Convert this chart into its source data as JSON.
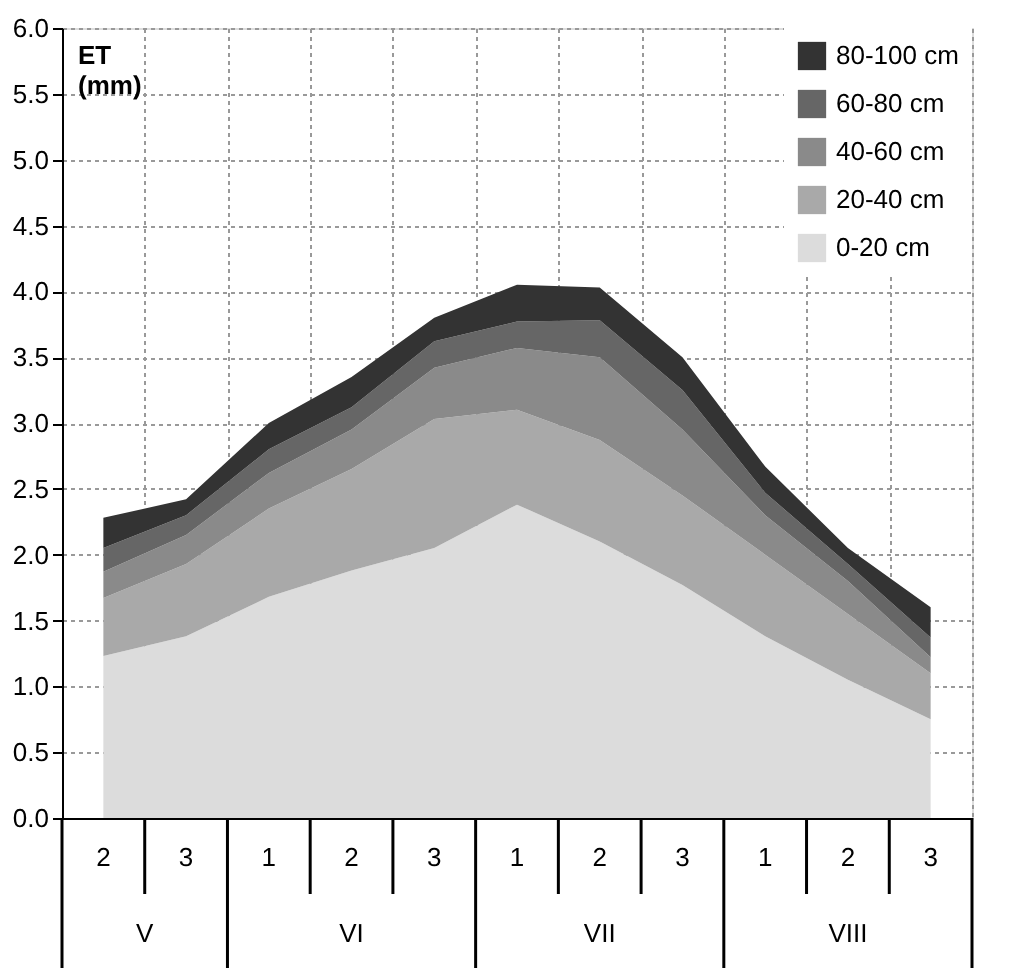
{
  "chart_data": {
    "type": "area",
    "stacked": true,
    "ylabel": "ET (mm)",
    "categories": [
      "2",
      "3",
      "1",
      "2",
      "3",
      "1",
      "2",
      "3",
      "1",
      "2",
      "3"
    ],
    "annotations": [
      "V",
      "VI",
      "VII",
      "VIII"
    ],
    "series": [
      {
        "name": "0-20 cm",
        "color": "#dcdcdc",
        "values": [
          1.23,
          1.38,
          1.68,
          1.88,
          2.05,
          2.38,
          2.1,
          1.77,
          1.38,
          1.05,
          0.75
        ]
      },
      {
        "name": "20-40 cm",
        "color": "#a9a9a9",
        "values": [
          0.44,
          0.55,
          0.67,
          0.77,
          0.98,
          0.72,
          0.77,
          0.68,
          0.62,
          0.5,
          0.35
        ]
      },
      {
        "name": "40-60 cm",
        "color": "#8a8a8a",
        "values": [
          0.2,
          0.22,
          0.27,
          0.3,
          0.39,
          0.47,
          0.63,
          0.5,
          0.3,
          0.25,
          0.12
        ]
      },
      {
        "name": "60-80 cm",
        "color": "#666666",
        "values": [
          0.18,
          0.15,
          0.18,
          0.17,
          0.2,
          0.2,
          0.28,
          0.3,
          0.17,
          0.13,
          0.15
        ]
      },
      {
        "name": "80-100 cm",
        "color": "#333333",
        "values": [
          0.23,
          0.12,
          0.2,
          0.23,
          0.18,
          0.28,
          0.25,
          0.25,
          0.2,
          0.12,
          0.23
        ]
      }
    ],
    "ylim": [
      0,
      6
    ],
    "yticks": [
      {
        "value": 0,
        "label": "0.0"
      },
      {
        "value": 0.5,
        "label": "0.5"
      },
      {
        "value": 1,
        "label": "1.0"
      },
      {
        "value": 1.5,
        "label": "1.5"
      },
      {
        "value": 2,
        "label": "2.0"
      },
      {
        "value": 2.5,
        "label": "2.5"
      },
      {
        "value": 3,
        "label": "3.0"
      },
      {
        "value": 3.5,
        "label": "3.5"
      },
      {
        "value": 4,
        "label": "4.0"
      },
      {
        "value": 4.5,
        "label": "4.5"
      },
      {
        "value": 5,
        "label": "5.0"
      },
      {
        "value": 5.5,
        "label": "5.5"
      },
      {
        "value": 6,
        "label": "6.0"
      }
    ],
    "grid": true,
    "legend": "top right"
  }
}
